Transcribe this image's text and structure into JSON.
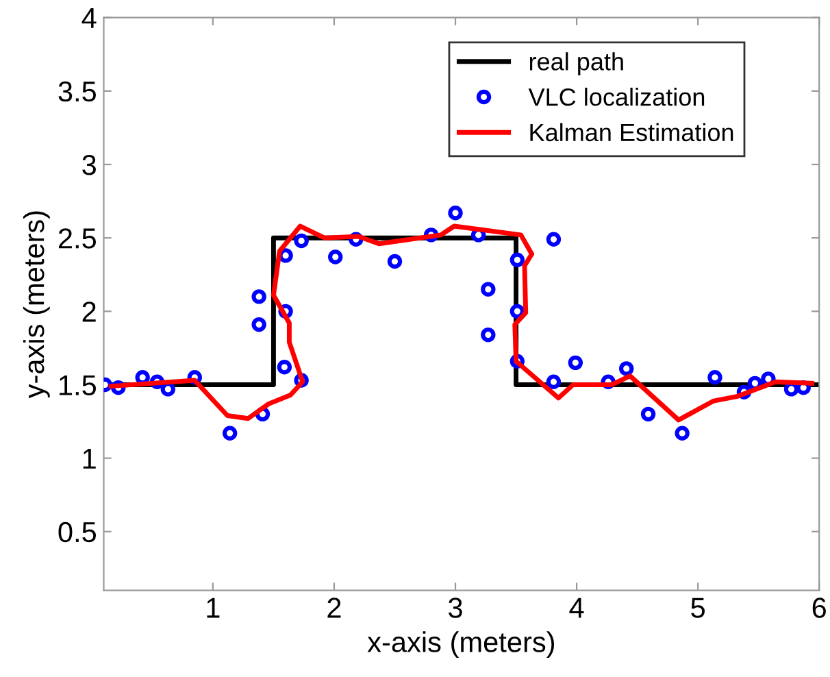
{
  "chart_data": {
    "type": "line",
    "xlabel": "x-axis (meters)",
    "ylabel": "y-axis (meters)",
    "xlim": [
      0.1,
      6
    ],
    "ylim": [
      0.1,
      4
    ],
    "xticks": [
      1,
      2,
      3,
      4,
      5,
      6
    ],
    "yticks": [
      0.5,
      1,
      1.5,
      2,
      2.5,
      3,
      3.5,
      4
    ],
    "grid": false,
    "legend": "top right",
    "series": [
      {
        "name": "real path",
        "color": "#000000",
        "marker": "none",
        "line_style": "solid",
        "x": [
          0.1,
          1.5,
          1.5,
          3.5,
          3.5,
          6
        ],
        "values": [
          1.5,
          1.5,
          2.5,
          2.5,
          1.5,
          1.5
        ]
      },
      {
        "name": "VLC localization",
        "type": "scatter",
        "color": "#0000ff",
        "marker": "circle",
        "x": [
          0.11,
          0.22,
          0.42,
          0.54,
          0.63,
          0.85,
          1.14,
          1.41,
          1.38,
          1.38,
          1.59,
          1.6,
          1.6,
          1.73,
          1.73,
          2.01,
          2.18,
          2.5,
          2.8,
          3.0,
          3.19,
          3.27,
          3.27,
          3.51,
          3.51,
          3.51,
          3.81,
          3.81,
          3.99,
          4.26,
          4.41,
          4.59,
          4.87,
          5.14,
          5.38,
          5.47,
          5.58,
          5.77,
          5.87
        ],
        "values": [
          1.5,
          1.48,
          1.55,
          1.52,
          1.47,
          1.55,
          1.17,
          1.3,
          2.1,
          1.91,
          1.62,
          2.0,
          2.38,
          1.53,
          2.48,
          2.37,
          2.49,
          2.34,
          2.52,
          2.67,
          2.52,
          2.15,
          1.84,
          2.35,
          2.0,
          1.66,
          2.49,
          1.52,
          1.65,
          1.52,
          1.61,
          1.3,
          1.17,
          1.55,
          1.45,
          1.51,
          1.54,
          1.47,
          1.48
        ]
      },
      {
        "name": "Kalman Estimation",
        "color": "#ff0000",
        "marker": "none",
        "line_style": "solid",
        "x": [
          0.16,
          0.85,
          1.12,
          1.29,
          1.46,
          1.64,
          1.74,
          1.63,
          1.63,
          1.5,
          1.55,
          1.72,
          1.92,
          2.2,
          2.37,
          2.88,
          2.99,
          3.54,
          3.63,
          3.57,
          3.58,
          3.49,
          3.5,
          3.85,
          3.97,
          4.29,
          4.44,
          4.84,
          5.13,
          5.32,
          5.64,
          5.94
        ],
        "values": [
          1.49,
          1.53,
          1.29,
          1.27,
          1.37,
          1.43,
          1.52,
          1.79,
          1.92,
          2.11,
          2.41,
          2.58,
          2.5,
          2.51,
          2.46,
          2.52,
          2.58,
          2.52,
          2.39,
          2.31,
          1.99,
          1.91,
          1.66,
          1.41,
          1.5,
          1.5,
          1.56,
          1.26,
          1.39,
          1.42,
          1.52,
          1.51
        ]
      }
    ]
  }
}
